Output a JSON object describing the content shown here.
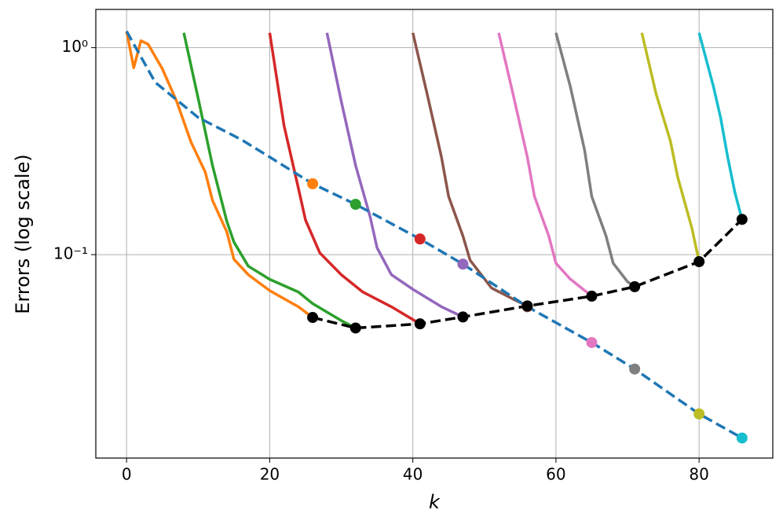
{
  "chart_data": {
    "type": "line",
    "xlabel": "k",
    "ylabel": "Errors (log scale)",
    "xlim": [
      -4.3,
      90.3
    ],
    "ylim": [
      0.0104,
      1.53
    ],
    "log_y": true,
    "grid": true,
    "xticks": [
      0,
      20,
      40,
      60,
      80
    ],
    "yticks": [
      {
        "value": 0.1,
        "label": "10⁻¹"
      },
      {
        "value": 1,
        "label": "10⁰"
      }
    ],
    "series": [
      {
        "color": "#ff7f0e",
        "linestyle": "solid",
        "x": [
          0,
          1,
          2,
          3,
          5,
          7,
          9,
          11,
          12,
          14,
          15,
          17,
          20,
          24,
          26
        ],
        "values": [
          1.2,
          0.8,
          1.08,
          1.04,
          0.79,
          0.55,
          0.35,
          0.25,
          0.183,
          0.129,
          0.095,
          0.08,
          0.067,
          0.056,
          0.0497
        ]
      },
      {
        "color": "#2ca02c",
        "linestyle": "solid",
        "x": [
          8,
          10,
          12,
          14,
          15,
          17,
          20,
          24,
          26,
          30,
          32
        ],
        "values": [
          1.18,
          0.57,
          0.27,
          0.145,
          0.115,
          0.088,
          0.076,
          0.066,
          0.058,
          0.048,
          0.0442
        ]
      },
      {
        "color": "#d62728",
        "linestyle": "solid",
        "x": [
          20,
          22,
          24,
          25,
          27,
          30,
          33,
          37,
          41
        ],
        "values": [
          1.18,
          0.42,
          0.21,
          0.147,
          0.102,
          0.08,
          0.066,
          0.056,
          0.0463
        ]
      },
      {
        "color": "#9467bd",
        "linestyle": "solid",
        "x": [
          28,
          30,
          32,
          34,
          35,
          37,
          40,
          44,
          47
        ],
        "values": [
          1.18,
          0.55,
          0.27,
          0.154,
          0.108,
          0.08,
          0.068,
          0.056,
          0.05
        ]
      },
      {
        "color": "#8c564b",
        "linestyle": "solid",
        "x": [
          40,
          42,
          44,
          45,
          47,
          48,
          51,
          54,
          56
        ],
        "values": [
          1.18,
          0.597,
          0.296,
          0.191,
          0.123,
          0.094,
          0.069,
          0.061,
          0.0565
        ]
      },
      {
        "color": "#e377c2",
        "linestyle": "solid",
        "x": [
          52,
          54,
          56,
          57,
          59,
          60,
          62,
          65
        ],
        "values": [
          1.18,
          0.597,
          0.296,
          0.191,
          0.123,
          0.0908,
          0.0762,
          0.063
        ]
      },
      {
        "color": "#7f7f7f",
        "linestyle": "solid",
        "x": [
          60,
          62,
          64,
          65,
          67,
          68,
          70,
          71
        ],
        "values": [
          1.18,
          0.65,
          0.32,
          0.191,
          0.123,
          0.0908,
          0.074,
          0.07
        ]
      },
      {
        "color": "#bcbd22",
        "linestyle": "solid",
        "x": [
          72,
          74,
          76,
          77,
          79,
          80
        ],
        "values": [
          1.18,
          0.597,
          0.353,
          0.238,
          0.134,
          0.0925
        ]
      },
      {
        "color": "#17becf",
        "linestyle": "solid",
        "x": [
          80,
          82,
          83,
          84,
          85,
          86
        ],
        "values": [
          1.18,
          0.65,
          0.46,
          0.296,
          0.2,
          0.148
        ]
      },
      {
        "color": "#1f77b4",
        "linestyle": "dashed",
        "x": [
          0,
          4,
          10,
          16,
          20,
          26,
          32,
          41,
          47,
          56,
          65,
          71,
          80,
          86
        ],
        "values": [
          1.2,
          0.68,
          0.46,
          0.36,
          0.296,
          0.22,
          0.175,
          0.119,
          0.09,
          0.056,
          0.0376,
          0.028,
          0.017,
          0.013
        ]
      },
      {
        "color": "#000000",
        "linestyle": "dashed",
        "marker_color": "#000000",
        "x": [
          26,
          32,
          41,
          47,
          56,
          65,
          71,
          80,
          86
        ],
        "values": [
          0.0497,
          0.0442,
          0.0463,
          0.05,
          0.0565,
          0.063,
          0.07,
          0.0925,
          0.148
        ]
      }
    ],
    "points": {
      "x": [
        26,
        32,
        41,
        47,
        56,
        65,
        71,
        80,
        86
      ],
      "values": [
        0.22,
        0.175,
        0.119,
        0.09,
        0.056,
        0.0376,
        0.028,
        0.017,
        0.013
      ],
      "colors": [
        "#ff7f0e",
        "#2ca02c",
        "#d62728",
        "#9467bd",
        "#8c564b",
        "#e377c2",
        "#7f7f7f",
        "#bcbd22",
        "#17becf"
      ]
    }
  }
}
